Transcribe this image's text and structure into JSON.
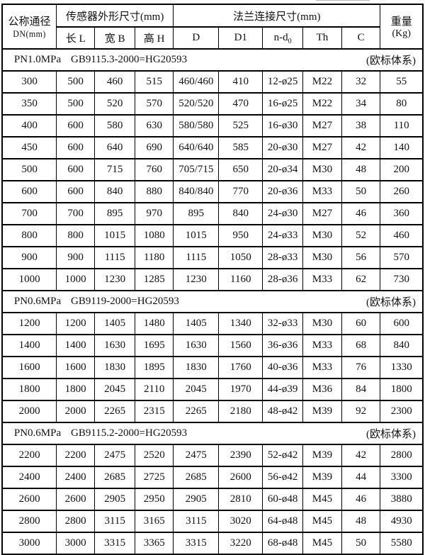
{
  "page": {
    "background": "#ffffff",
    "border_color": "#000000",
    "text_color": "#111111"
  },
  "table": {
    "header": {
      "dn_line1": "公称通径",
      "dn_line2": "DN(mm)",
      "sensor_group": "传感器外形尺寸(mm)",
      "flange_group": "法兰连接尺寸(mm)",
      "weight_line1": "重量",
      "weight_line2": "(Kg)",
      "sub_columns": [
        "长 L",
        "宽 B",
        "高 H",
        "D",
        "D1",
        "n-d₀",
        "Th",
        "C"
      ]
    },
    "sections": [
      {
        "pressure": "PN1.0MPa",
        "standard": "GB9115.3-2000=HG20593",
        "system": "(欧标体系)",
        "rows": [
          [
            "300",
            "500",
            "460",
            "515",
            "460/460",
            "410",
            "12-ø25",
            "M22",
            "32",
            "55"
          ],
          [
            "350",
            "500",
            "520",
            "570",
            "520/520",
            "470",
            "16-ø25",
            "M22",
            "34",
            "80"
          ],
          [
            "400",
            "600",
            "580",
            "630",
            "580/580",
            "525",
            "16-ø30",
            "M27",
            "38",
            "110"
          ],
          [
            "450",
            "600",
            "640",
            "690",
            "640/640",
            "585",
            "20-ø30",
            "M27",
            "42",
            "140"
          ],
          [
            "500",
            "600",
            "715",
            "760",
            "705/715",
            "650",
            "20-ø34",
            "M30",
            "48",
            "200"
          ],
          [
            "600",
            "600",
            "840",
            "880",
            "840/840",
            "770",
            "20-ø36",
            "M33",
            "50",
            "260"
          ],
          [
            "700",
            "700",
            "895",
            "970",
            "895",
            "840",
            "24-ø30",
            "M27",
            "46",
            "360"
          ],
          [
            "800",
            "800",
            "1015",
            "1080",
            "1015",
            "950",
            "24-ø33",
            "M30",
            "52",
            "460"
          ],
          [
            "900",
            "900",
            "1115",
            "1180",
            "1115",
            "1050",
            "28-ø33",
            "M30",
            "56",
            "570"
          ],
          [
            "1000",
            "1000",
            "1230",
            "1285",
            "1230",
            "1160",
            "28-ø36",
            "M33",
            "62",
            "730"
          ]
        ]
      },
      {
        "pressure": "PN0.6MPa",
        "standard": "GB9119-2000=HG20593",
        "system": "(欧标体系)",
        "rows": [
          [
            "1200",
            "1200",
            "1405",
            "1480",
            "1405",
            "1340",
            "32-ø33",
            "M30",
            "60",
            "600"
          ],
          [
            "1400",
            "1400",
            "1630",
            "1695",
            "1630",
            "1560",
            "36-ø36",
            "M33",
            "68",
            "840"
          ],
          [
            "1600",
            "1600",
            "1830",
            "1895",
            "1830",
            "1760",
            "40-ø36",
            "M33",
            "76",
            "1330"
          ],
          [
            "1800",
            "1800",
            "2045",
            "2110",
            "2045",
            "1970",
            "44-ø39",
            "M36",
            "84",
            "1800"
          ],
          [
            "2000",
            "2000",
            "2265",
            "2315",
            "2265",
            "2180",
            "48-ø42",
            "M39",
            "92",
            "2300"
          ]
        ]
      },
      {
        "pressure": "PN0.6MPa",
        "standard": "GB9115.2-2000=HG20593",
        "system": "(欧标体系)",
        "rows": [
          [
            "2200",
            "2200",
            "2475",
            "2520",
            "2475",
            "2390",
            "52-ø42",
            "M39",
            "42",
            "2800"
          ],
          [
            "2400",
            "2400",
            "2685",
            "2725",
            "2685",
            "2600",
            "56-ø42",
            "M39",
            "44",
            "3300"
          ],
          [
            "2600",
            "2600",
            "2905",
            "2950",
            "2905",
            "2810",
            "60-ø48",
            "M45",
            "46",
            "3880"
          ],
          [
            "2800",
            "2800",
            "3115",
            "3165",
            "3115",
            "3020",
            "64-ø48",
            "M45",
            "48",
            "4930"
          ],
          [
            "3000",
            "3000",
            "3315",
            "3365",
            "3315",
            "3220",
            "68-ø48",
            "M45",
            "50",
            "5580"
          ]
        ]
      }
    ]
  }
}
